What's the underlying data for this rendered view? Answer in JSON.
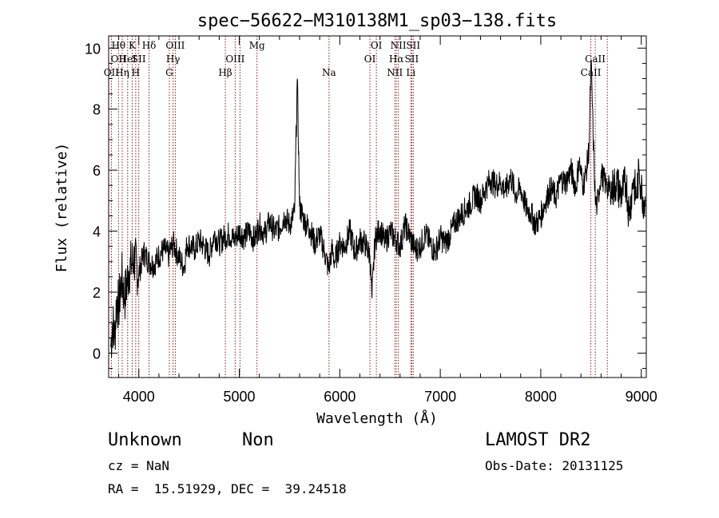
{
  "chart_data": {
    "type": "line",
    "title": "spec−56622−M310138M1_sp03−138.fits",
    "xlabel": "Wavelength (Å)",
    "ylabel": "Flux (relative)",
    "xlim": [
      3700,
      9050
    ],
    "ylim": [
      -0.8,
      10.4
    ],
    "xticks": [
      4000,
      5000,
      6000,
      7000,
      8000,
      9000
    ],
    "yticks": [
      0,
      2,
      4,
      6,
      8,
      10
    ],
    "grid": false,
    "line_color": "#000000",
    "marker_color": "#8b1a1a",
    "series": [
      {
        "x": [
          3720,
          3740,
          3760,
          3780,
          3800,
          3830,
          3860,
          3900,
          3950,
          4000,
          4050,
          4100,
          4150,
          4200,
          4250,
          4300,
          4340,
          4380,
          4420,
          4450,
          4480,
          4520,
          4560,
          4600,
          4650,
          4700,
          4750,
          4800,
          4850,
          4900,
          4950,
          5000,
          5050,
          5100,
          5150,
          5200,
          5250,
          5300,
          5350,
          5400,
          5450,
          5500,
          5550,
          5577,
          5600,
          5650,
          5700,
          5750,
          5800,
          5850,
          5890,
          5920,
          5950,
          6000,
          6050,
          6100,
          6150,
          6200,
          6250,
          6300,
          6320,
          6350,
          6400,
          6450,
          6500,
          6563,
          6600,
          6650,
          6700,
          6750,
          6800,
          6850,
          6900,
          6950,
          7000,
          7050,
          7100,
          7150,
          7200,
          7250,
          7300,
          7350,
          7400,
          7450,
          7500,
          7550,
          7600,
          7650,
          7700,
          7750,
          7800,
          7850,
          7900,
          7950,
          8000,
          8050,
          8100,
          8150,
          8200,
          8250,
          8300,
          8350,
          8380,
          8420,
          8450,
          8480,
          8500,
          8520,
          8542,
          8560,
          8600,
          8650,
          8700,
          8750,
          8800,
          8850,
          8880,
          8920,
          8950,
          8980,
          9000,
          9040
        ],
        "y": [
          0.2,
          1.0,
          0.5,
          1.8,
          1.5,
          2.5,
          1.8,
          2.7,
          3.1,
          2.6,
          3.3,
          3.0,
          2.9,
          3.2,
          3.4,
          3.2,
          3.6,
          3.3,
          3.0,
          2.8,
          3.6,
          3.5,
          3.4,
          3.7,
          3.5,
          3.2,
          3.9,
          3.6,
          3.8,
          3.9,
          3.7,
          4.0,
          3.8,
          4.0,
          3.7,
          4.2,
          3.9,
          4.3,
          4.0,
          4.1,
          4.5,
          4.2,
          4.6,
          9.0,
          4.8,
          4.3,
          4.1,
          3.6,
          3.9,
          3.3,
          2.7,
          3.4,
          3.0,
          3.6,
          3.5,
          4.0,
          3.3,
          3.7,
          3.6,
          3.2,
          1.8,
          3.7,
          4.1,
          3.6,
          4.0,
          3.7,
          3.5,
          4.2,
          3.8,
          3.4,
          3.5,
          3.9,
          3.6,
          3.3,
          3.8,
          3.6,
          3.9,
          4.3,
          4.5,
          4.7,
          4.9,
          5.2,
          5.0,
          5.4,
          5.7,
          5.5,
          5.6,
          5.3,
          5.8,
          5.2,
          5.4,
          4.8,
          4.6,
          4.2,
          4.5,
          5.0,
          5.4,
          5.1,
          5.7,
          5.6,
          6.0,
          5.4,
          6.3,
          5.5,
          5.9,
          6.7,
          9.6,
          7.3,
          5.0,
          4.8,
          5.9,
          5.5,
          5.3,
          5.6,
          5.2,
          5.6,
          4.5,
          5.7,
          5.1,
          6.0,
          5.4,
          4.8
        ]
      }
    ],
    "lines": [
      {
        "wl": 3727,
        "labels": [
          "OII"
        ],
        "label_rows": [
          2
        ]
      },
      {
        "wl": 3798,
        "labels": [
          "Hθ",
          "OII"
        ],
        "label_rows": [
          0,
          1
        ]
      },
      {
        "wl": 3835,
        "labels": [
          "Hη"
        ],
        "label_rows": [
          2
        ]
      },
      {
        "wl": 3889,
        "labels": [
          "HeI"
        ],
        "label_rows": [
          1
        ]
      },
      {
        "wl": 3934,
        "labels": [
          "K"
        ],
        "label_rows": [
          0
        ]
      },
      {
        "wl": 3969,
        "labels": [
          "H"
        ],
        "label_rows": [
          2
        ]
      },
      {
        "wl": 4000,
        "labels": [
          "SII"
        ],
        "label_rows": [
          1
        ]
      },
      {
        "wl": 4102,
        "labels": [
          "Hδ"
        ],
        "label_rows": [
          0
        ]
      },
      {
        "wl": 4304,
        "labels": [
          "G"
        ],
        "label_rows": [
          2
        ]
      },
      {
        "wl": 4341,
        "labels": [
          "Hγ"
        ],
        "label_rows": [
          1
        ]
      },
      {
        "wl": 4363,
        "labels": [
          "OIII"
        ],
        "label_rows": [
          0
        ]
      },
      {
        "wl": 4861,
        "labels": [
          "Hβ"
        ],
        "label_rows": [
          2
        ]
      },
      {
        "wl": 4959,
        "labels": [
          "OIII"
        ],
        "label_rows": [
          1
        ]
      },
      {
        "wl": 5007,
        "labels": [],
        "label_rows": []
      },
      {
        "wl": 5176,
        "labels": [
          "Mg"
        ],
        "label_rows": [
          0
        ]
      },
      {
        "wl": 5893,
        "labels": [
          "Na"
        ],
        "label_rows": [
          2
        ]
      },
      {
        "wl": 6300,
        "labels": [
          "OI"
        ],
        "label_rows": [
          1
        ]
      },
      {
        "wl": 6364,
        "labels": [
          "OI"
        ],
        "label_rows": [
          0
        ]
      },
      {
        "wl": 6548,
        "labels": [
          "NII"
        ],
        "label_rows": [
          2
        ]
      },
      {
        "wl": 6563,
        "labels": [
          "Hα"
        ],
        "label_rows": [
          1
        ]
      },
      {
        "wl": 6583,
        "labels": [
          "NII"
        ],
        "label_rows": [
          0
        ]
      },
      {
        "wl": 6707,
        "labels": [
          "Li"
        ],
        "label_rows": [
          2
        ]
      },
      {
        "wl": 6716,
        "labels": [
          "SII"
        ],
        "label_rows": [
          1
        ]
      },
      {
        "wl": 6731,
        "labels": [
          "SII"
        ],
        "label_rows": [
          0
        ]
      },
      {
        "wl": 8498,
        "labels": [
          "CaII"
        ],
        "label_rows": [
          2
        ]
      },
      {
        "wl": 8542,
        "labels": [
          "CaII"
        ],
        "label_rows": [
          1
        ]
      },
      {
        "wl": 8662,
        "labels": [],
        "label_rows": []
      }
    ]
  },
  "info": {
    "class": "Unknown",
    "subclass": "Non",
    "survey": "LAMOST DR2",
    "cz": "cz = NaN",
    "obsdate": "Obs-Date: 20131125",
    "radec": "RA =  15.51929, DEC =  39.24518"
  }
}
